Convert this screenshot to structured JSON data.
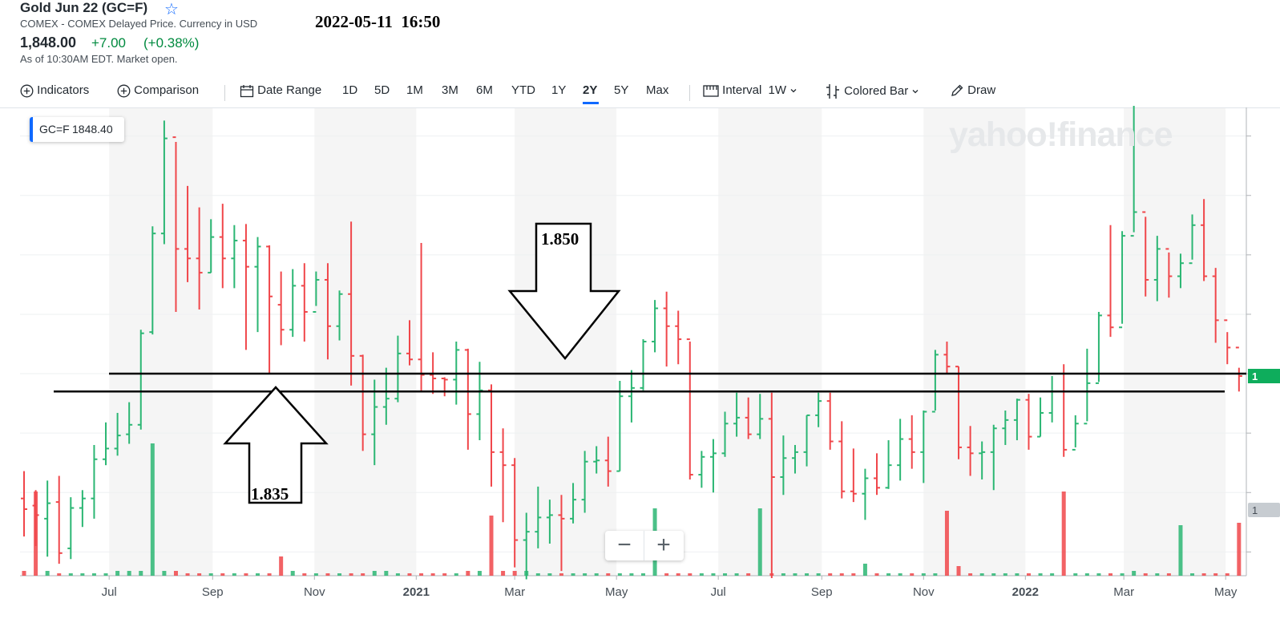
{
  "header": {
    "title": "Gold Jun 22 (GC=F)",
    "subtitle": "COMEX - COMEX Delayed Price. Currency in USD",
    "timestamp": "2022-05-11  16:50",
    "price": "1,848.00",
    "change": "+7.00",
    "change_pct": "(+0.38%)",
    "as_of": "As of 10:30AM EDT. Market open."
  },
  "toolbar": {
    "indicators": "Indicators",
    "comparison": "Comparison",
    "date_range": "Date Range",
    "ranges": [
      "1D",
      "5D",
      "1M",
      "3M",
      "6M",
      "YTD",
      "1Y",
      "2Y",
      "5Y",
      "Max"
    ],
    "selected_range": "2Y",
    "interval_label": "Interval",
    "interval_value": "1W",
    "chart_type": "Colored Bar",
    "draw": "Draw"
  },
  "legend": {
    "symbol": "GC=F",
    "value": "1848.40"
  },
  "watermark": "yahoo!finance",
  "zoom": {
    "minus": "−",
    "plus": "+"
  },
  "annotations": {
    "upper_label": "1.850",
    "lower_label": "1.835",
    "upper_level": 1850,
    "lower_level": 1835
  },
  "colors": {
    "up": "#2bb673",
    "down": "#f0464a",
    "accent": "#0f69ff",
    "price_tag": "#0ead5c"
  },
  "chart_data": {
    "type": "bar",
    "title": "",
    "xlabel": "",
    "ylabel": "",
    "x_tick_labels": [
      "Jul",
      "Sep",
      "Nov",
      "2021",
      "Mar",
      "May",
      "Jul",
      "Sep",
      "Nov",
      "2022",
      "Mar",
      "May"
    ],
    "x_range": [
      "2020-05-11",
      "2022-05-11"
    ],
    "ylim": [
      1680,
      2070
    ],
    "price_tag": "1",
    "volume_tag": "1",
    "series": [
      {
        "values": [
          {
            "date": "2020-05-11",
            "o": 1745,
            "h": 1768,
            "l": 1713,
            "c": 1736,
            "v": 0.02
          },
          {
            "date": "2020-05-18",
            "o": 1739,
            "h": 1752,
            "l": 1705,
            "c": 1731,
            "v": 0.35
          },
          {
            "date": "2020-05-25",
            "o": 1728,
            "h": 1760,
            "l": 1696,
            "c": 1741,
            "v": 0.02
          },
          {
            "date": "2020-06-01",
            "o": 1742,
            "h": 1764,
            "l": 1690,
            "c": 1699,
            "v": 0.01
          },
          {
            "date": "2020-06-08",
            "o": 1703,
            "h": 1746,
            "l": 1694,
            "c": 1737,
            "v": 0.01
          },
          {
            "date": "2020-06-15",
            "o": 1737,
            "h": 1752,
            "l": 1721,
            "c": 1745,
            "v": 0.01
          },
          {
            "date": "2020-06-22",
            "o": 1745,
            "h": 1790,
            "l": 1728,
            "c": 1778,
            "v": 0.01
          },
          {
            "date": "2020-06-29",
            "o": 1778,
            "h": 1809,
            "l": 1773,
            "c": 1787,
            "v": 0.01
          },
          {
            "date": "2020-07-06",
            "o": 1787,
            "h": 1817,
            "l": 1781,
            "c": 1798,
            "v": 0.02
          },
          {
            "date": "2020-07-13",
            "o": 1799,
            "h": 1826,
            "l": 1791,
            "c": 1807,
            "v": 0.02
          },
          {
            "date": "2020-07-20",
            "o": 1807,
            "h": 1887,
            "l": 1803,
            "c": 1884,
            "v": 0.02
          },
          {
            "date": "2020-07-27",
            "o": 1885,
            "h": 1974,
            "l": 1883,
            "c": 1968,
            "v": 0.55
          },
          {
            "date": "2020-08-03",
            "o": 1968,
            "h": 2063,
            "l": 1959,
            "c": 2048,
            "v": 0.02
          },
          {
            "date": "2020-08-10",
            "o": 2049,
            "h": 2045,
            "l": 1902,
            "c": 1955,
            "v": 0.02
          },
          {
            "date": "2020-08-17",
            "o": 1955,
            "h": 2008,
            "l": 1927,
            "c": 1947,
            "v": 0.01
          },
          {
            "date": "2020-08-24",
            "o": 1947,
            "h": 1990,
            "l": 1904,
            "c": 1935,
            "v": 0.01
          },
          {
            "date": "2020-08-31",
            "o": 1935,
            "h": 1980,
            "l": 1935,
            "c": 1965,
            "v": 0.01
          },
          {
            "date": "2020-09-07",
            "o": 1965,
            "h": 1993,
            "l": 1922,
            "c": 1947,
            "v": 0.01
          },
          {
            "date": "2020-09-14",
            "o": 1947,
            "h": 1975,
            "l": 1922,
            "c": 1962,
            "v": 0.01
          },
          {
            "date": "2020-09-21",
            "o": 1962,
            "h": 1976,
            "l": 1870,
            "c": 1940,
            "v": 0.01
          },
          {
            "date": "2020-09-28",
            "o": 1940,
            "h": 1965,
            "l": 1885,
            "c": 1957,
            "v": 0.01
          },
          {
            "date": "2020-10-05",
            "o": 1957,
            "h": 1958,
            "l": 1850,
            "c": 1915,
            "v": 0.01
          },
          {
            "date": "2020-10-12",
            "o": 1908,
            "h": 1936,
            "l": 1874,
            "c": 1887,
            "v": 0.08
          },
          {
            "date": "2020-10-19",
            "o": 1887,
            "h": 1938,
            "l": 1881,
            "c": 1924,
            "v": 0.02
          },
          {
            "date": "2020-10-26",
            "o": 1924,
            "h": 1943,
            "l": 1877,
            "c": 1902,
            "v": 0.01
          },
          {
            "date": "2020-11-02",
            "o": 1902,
            "h": 1936,
            "l": 1907,
            "c": 1929,
            "v": 0.01
          },
          {
            "date": "2020-11-09",
            "o": 1929,
            "h": 1943,
            "l": 1862,
            "c": 1890,
            "v": 0.01
          },
          {
            "date": "2020-11-16",
            "o": 1890,
            "h": 1920,
            "l": 1878,
            "c": 1917,
            "v": 0.01
          },
          {
            "date": "2020-11-23",
            "o": 1917,
            "h": 1978,
            "l": 1840,
            "c": 1865,
            "v": 0.01
          },
          {
            "date": "2020-11-30",
            "o": 1865,
            "h": 1866,
            "l": 1785,
            "c": 1799,
            "v": 0.01
          },
          {
            "date": "2020-12-07",
            "o": 1799,
            "h": 1845,
            "l": 1773,
            "c": 1822,
            "v": 0.02
          },
          {
            "date": "2020-12-14",
            "o": 1822,
            "h": 1855,
            "l": 1807,
            "c": 1829,
            "v": 0.02
          },
          {
            "date": "2020-12-21",
            "o": 1829,
            "h": 1882,
            "l": 1826,
            "c": 1867,
            "v": 0.01
          },
          {
            "date": "2020-12-28",
            "o": 1867,
            "h": 1895,
            "l": 1857,
            "c": 1862,
            "v": 0.01
          },
          {
            "date": "2021-01-04",
            "o": 1862,
            "h": 1960,
            "l": 1835,
            "c": 1849,
            "v": 0.01
          },
          {
            "date": "2021-01-11",
            "o": 1849,
            "h": 1868,
            "l": 1833,
            "c": 1846,
            "v": 0.01
          },
          {
            "date": "2021-01-18",
            "o": 1846,
            "h": 1847,
            "l": 1831,
            "c": 1845,
            "v": 0.01
          },
          {
            "date": "2021-01-25",
            "o": 1845,
            "h": 1877,
            "l": 1824,
            "c": 1870,
            "v": 0.01
          },
          {
            "date": "2021-02-01",
            "o": 1870,
            "h": 1871,
            "l": 1786,
            "c": 1816,
            "v": 0.02
          },
          {
            "date": "2021-02-08",
            "o": 1816,
            "h": 1860,
            "l": 1794,
            "c": 1836,
            "v": 0.02
          },
          {
            "date": "2021-02-15",
            "o": 1836,
            "h": 1841,
            "l": 1755,
            "c": 1784,
            "v": 0.25
          },
          {
            "date": "2021-02-22",
            "o": 1784,
            "h": 1804,
            "l": 1725,
            "c": 1773,
            "v": 0.02
          },
          {
            "date": "2021-03-01",
            "o": 1773,
            "h": 1779,
            "l": 1687,
            "c": 1710,
            "v": 0.02
          },
          {
            "date": "2021-03-08",
            "o": 1710,
            "h": 1733,
            "l": 1677,
            "c": 1717,
            "v": 0.02
          },
          {
            "date": "2021-03-15",
            "o": 1717,
            "h": 1755,
            "l": 1703,
            "c": 1729,
            "v": 0.01
          },
          {
            "date": "2021-03-22",
            "o": 1729,
            "h": 1744,
            "l": 1707,
            "c": 1731,
            "v": 0.01
          },
          {
            "date": "2021-03-29",
            "o": 1731,
            "h": 1748,
            "l": 1684,
            "c": 1728,
            "v": 0.01
          },
          {
            "date": "2021-04-05",
            "o": 1728,
            "h": 1758,
            "l": 1724,
            "c": 1744,
            "v": 0.01
          },
          {
            "date": "2021-04-12",
            "o": 1744,
            "h": 1785,
            "l": 1733,
            "c": 1776,
            "v": 0.01
          },
          {
            "date": "2021-04-19",
            "o": 1776,
            "h": 1789,
            "l": 1766,
            "c": 1777,
            "v": 0.01
          },
          {
            "date": "2021-04-26",
            "o": 1777,
            "h": 1797,
            "l": 1755,
            "c": 1768,
            "v": 0.01
          },
          {
            "date": "2021-05-03",
            "o": 1768,
            "h": 1844,
            "l": 1768,
            "c": 1831,
            "v": 0.01
          },
          {
            "date": "2021-05-10",
            "o": 1831,
            "h": 1853,
            "l": 1809,
            "c": 1838,
            "v": 0.01
          },
          {
            "date": "2021-05-17",
            "o": 1838,
            "h": 1879,
            "l": 1836,
            "c": 1877,
            "v": 0.01
          },
          {
            "date": "2021-05-24",
            "o": 1877,
            "h": 1912,
            "l": 1868,
            "c": 1905,
            "v": 0.28
          },
          {
            "date": "2021-05-31",
            "o": 1905,
            "h": 1919,
            "l": 1856,
            "c": 1890,
            "v": 0.01
          },
          {
            "date": "2021-06-07",
            "o": 1890,
            "h": 1903,
            "l": 1858,
            "c": 1879,
            "v": 0.01
          },
          {
            "date": "2021-06-14",
            "o": 1879,
            "h": 1877,
            "l": 1761,
            "c": 1765,
            "v": 0.01
          },
          {
            "date": "2021-06-21",
            "o": 1765,
            "h": 1785,
            "l": 1754,
            "c": 1780,
            "v": 0.01
          },
          {
            "date": "2021-06-28",
            "o": 1780,
            "h": 1795,
            "l": 1750,
            "c": 1783,
            "v": 0.01
          },
          {
            "date": "2021-07-05",
            "o": 1783,
            "h": 1818,
            "l": 1780,
            "c": 1808,
            "v": 0.01
          },
          {
            "date": "2021-07-12",
            "o": 1808,
            "h": 1834,
            "l": 1797,
            "c": 1813,
            "v": 0.01
          },
          {
            "date": "2021-07-19",
            "o": 1813,
            "h": 1830,
            "l": 1795,
            "c": 1799,
            "v": 0.01
          },
          {
            "date": "2021-07-26",
            "o": 1799,
            "h": 1833,
            "l": 1795,
            "c": 1812,
            "v": 0.28
          },
          {
            "date": "2021-08-02",
            "o": 1812,
            "h": 1834,
            "l": 1678,
            "c": 1763,
            "v": 0.01
          },
          {
            "date": "2021-08-09",
            "o": 1763,
            "h": 1798,
            "l": 1748,
            "c": 1779,
            "v": 0.01
          },
          {
            "date": "2021-08-16",
            "o": 1779,
            "h": 1790,
            "l": 1766,
            "c": 1784,
            "v": 0.01
          },
          {
            "date": "2021-08-23",
            "o": 1784,
            "h": 1815,
            "l": 1772,
            "c": 1815,
            "v": 0.01
          },
          {
            "date": "2021-08-30",
            "o": 1815,
            "h": 1834,
            "l": 1805,
            "c": 1827,
            "v": 0.01
          },
          {
            "date": "2021-09-06",
            "o": 1827,
            "h": 1834,
            "l": 1786,
            "c": 1793,
            "v": 0.01
          },
          {
            "date": "2021-09-13",
            "o": 1793,
            "h": 1810,
            "l": 1745,
            "c": 1751,
            "v": 0.01
          },
          {
            "date": "2021-09-20",
            "o": 1751,
            "h": 1787,
            "l": 1742,
            "c": 1749,
            "v": 0.01
          },
          {
            "date": "2021-09-27",
            "o": 1749,
            "h": 1770,
            "l": 1727,
            "c": 1762,
            "v": 0.05
          },
          {
            "date": "2021-10-04",
            "o": 1762,
            "h": 1783,
            "l": 1748,
            "c": 1754,
            "v": 0.01
          },
          {
            "date": "2021-10-11",
            "o": 1754,
            "h": 1794,
            "l": 1753,
            "c": 1773,
            "v": 0.01
          },
          {
            "date": "2021-10-18",
            "o": 1773,
            "h": 1812,
            "l": 1760,
            "c": 1795,
            "v": 0.01
          },
          {
            "date": "2021-10-25",
            "o": 1795,
            "h": 1815,
            "l": 1770,
            "c": 1784,
            "v": 0.01
          },
          {
            "date": "2021-11-01",
            "o": 1784,
            "h": 1819,
            "l": 1758,
            "c": 1818,
            "v": 0.01
          },
          {
            "date": "2021-11-08",
            "o": 1818,
            "h": 1870,
            "l": 1819,
            "c": 1866,
            "v": 0.01
          },
          {
            "date": "2021-11-15",
            "o": 1866,
            "h": 1877,
            "l": 1850,
            "c": 1856,
            "v": 0.27
          },
          {
            "date": "2021-11-22",
            "o": 1856,
            "h": 1856,
            "l": 1778,
            "c": 1788,
            "v": 0.04
          },
          {
            "date": "2021-11-29",
            "o": 1788,
            "h": 1806,
            "l": 1764,
            "c": 1783,
            "v": 0.01
          },
          {
            "date": "2021-12-06",
            "o": 1783,
            "h": 1793,
            "l": 1761,
            "c": 1784,
            "v": 0.01
          },
          {
            "date": "2021-12-13",
            "o": 1784,
            "h": 1807,
            "l": 1752,
            "c": 1804,
            "v": 0.01
          },
          {
            "date": "2021-12-20",
            "o": 1804,
            "h": 1819,
            "l": 1790,
            "c": 1811,
            "v": 0.01
          },
          {
            "date": "2021-12-27",
            "o": 1811,
            "h": 1829,
            "l": 1794,
            "c": 1828,
            "v": 0.01
          },
          {
            "date": "2022-01-03",
            "o": 1828,
            "h": 1833,
            "l": 1786,
            "c": 1797,
            "v": 0.01
          },
          {
            "date": "2022-01-10",
            "o": 1797,
            "h": 1830,
            "l": 1797,
            "c": 1817,
            "v": 0.01
          },
          {
            "date": "2022-01-17",
            "o": 1817,
            "h": 1848,
            "l": 1809,
            "c": 1835,
            "v": 0.01
          },
          {
            "date": "2022-01-24",
            "o": 1835,
            "h": 1858,
            "l": 1780,
            "c": 1786,
            "v": 0.35
          },
          {
            "date": "2022-01-31",
            "o": 1786,
            "h": 1815,
            "l": 1788,
            "c": 1808,
            "v": 0.01
          },
          {
            "date": "2022-02-07",
            "o": 1808,
            "h": 1871,
            "l": 1810,
            "c": 1842,
            "v": 0.01
          },
          {
            "date": "2022-02-14",
            "o": 1842,
            "h": 1902,
            "l": 1843,
            "c": 1899,
            "v": 0.01
          },
          {
            "date": "2022-02-21",
            "o": 1899,
            "h": 1975,
            "l": 1881,
            "c": 1889,
            "v": 0.01
          },
          {
            "date": "2022-02-28",
            "o": 1889,
            "h": 1970,
            "l": 1892,
            "c": 1966,
            "v": 0.01
          },
          {
            "date": "2022-03-07",
            "o": 1966,
            "h": 2078,
            "l": 1969,
            "c": 1986,
            "v": 0.02
          },
          {
            "date": "2022-03-14",
            "o": 1986,
            "h": 1982,
            "l": 1915,
            "c": 1929,
            "v": 0.01
          },
          {
            "date": "2022-03-21",
            "o": 1929,
            "h": 1966,
            "l": 1911,
            "c": 1955,
            "v": 0.01
          },
          {
            "date": "2022-03-28",
            "o": 1955,
            "h": 1952,
            "l": 1914,
            "c": 1932,
            "v": 0.01
          },
          {
            "date": "2022-04-04",
            "o": 1932,
            "h": 1951,
            "l": 1922,
            "c": 1943,
            "v": 0.21
          },
          {
            "date": "2022-04-11",
            "o": 1943,
            "h": 1984,
            "l": 1946,
            "c": 1975,
            "v": 0.01
          },
          {
            "date": "2022-04-18",
            "o": 1975,
            "h": 1997,
            "l": 1928,
            "c": 1932,
            "v": 0.01
          },
          {
            "date": "2022-04-25",
            "o": 1932,
            "h": 1939,
            "l": 1876,
            "c": 1895,
            "v": 0.01
          },
          {
            "date": "2022-05-02",
            "o": 1895,
            "h": 1885,
            "l": 1858,
            "c": 1872,
            "v": 0.01
          },
          {
            "date": "2022-05-09",
            "o": 1872,
            "h": 1855,
            "l": 1835,
            "c": 1848,
            "v": 0.22
          }
        ]
      }
    ]
  }
}
